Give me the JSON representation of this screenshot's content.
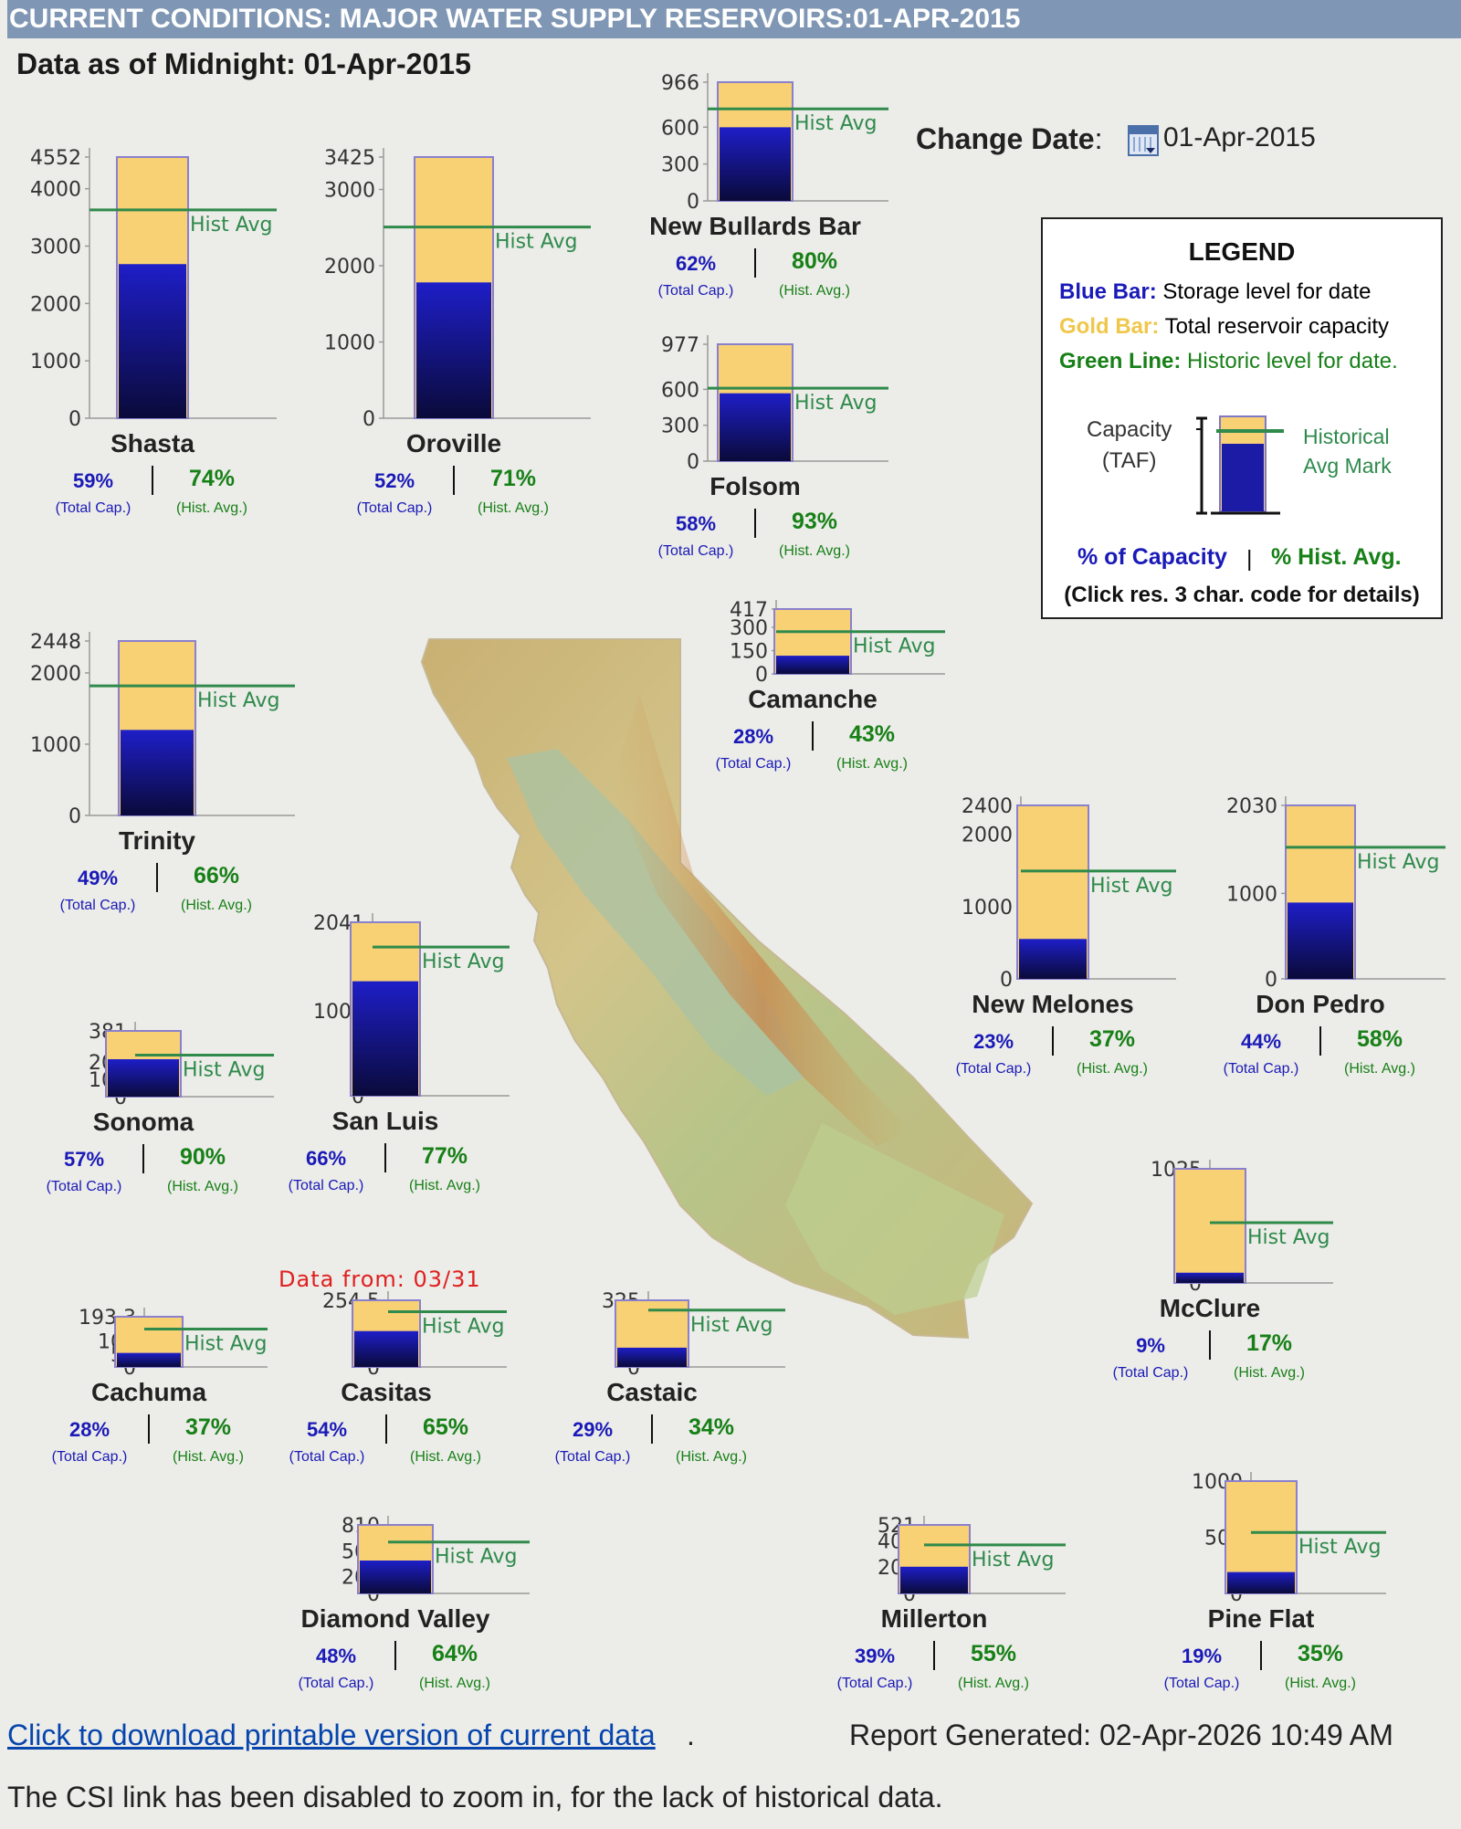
{
  "page": {
    "title": "CURRENT CONDITIONS: MAJOR WATER SUPPLY RESERVOIRS:01-APR-2015",
    "as_of": "Data as of Midnight: 01-Apr-2015",
    "change_date_label": "Change Date",
    "change_date_colon": ":",
    "change_date_value": "01-Apr-2015",
    "date_from_note": "Data from: 03/31",
    "download_link": "Click to download printable version of current data",
    "download_dot": ".",
    "report_generated": "Report Generated: 02-Apr-2026 10:49 AM",
    "csi_note": "The CSI link has been disabled to zoom in, for the lack of historical data."
  },
  "legend": {
    "title": "LEGEND",
    "blue_key": "Blue Bar:",
    "blue_text": " Storage level for date",
    "gold_key": "Gold Bar:",
    "gold_text": " Total reservoir capacity",
    "green_key": "Green Line:",
    "green_text": " Historic level for date.",
    "capacity_label_1": "Capacity",
    "capacity_label_2": "(TAF)",
    "hist_label_1": "Historical",
    "hist_label_2": "Avg Mark",
    "pct_capacity": "% of Capacity",
    "separator": "|",
    "pct_hist": "% Hist. Avg.",
    "click_note": "(Click res. 3 char. code for details)"
  },
  "labels": {
    "hist_avg": "Hist Avg",
    "total_cap": "(Total Cap.)",
    "hist_avg_small": "(Hist. Avg.)"
  },
  "colors": {
    "storage": "#1a1ab8",
    "capacity": "#f8d174",
    "hist_line": "#2f8a4c",
    "header": "#7f97b4"
  },
  "chart_data": [
    {
      "type": "bar",
      "name": "Shasta",
      "capacity": 4552,
      "storage": 2686,
      "hist_avg": 3630,
      "ticks": [
        0,
        1000,
        2000,
        3000,
        4000,
        4552
      ],
      "tick_labels": [
        "0",
        "1000",
        "2000",
        "3000",
        "4000",
        "4552"
      ],
      "pct_capacity": "59%",
      "pct_hist": "74%"
    },
    {
      "type": "bar",
      "name": "Oroville",
      "capacity": 3425,
      "storage": 1781,
      "hist_avg": 2508,
      "ticks": [
        0,
        1000,
        2000,
        3000,
        3425
      ],
      "tick_labels": [
        "0",
        "1000",
        "2000",
        "3000",
        "3425"
      ],
      "pct_capacity": "52%",
      "pct_hist": "71%"
    },
    {
      "type": "bar",
      "name": "New Bullards Bar",
      "capacity": 966,
      "storage": 599,
      "hist_avg": 749,
      "ticks": [
        0,
        300,
        600,
        966
      ],
      "tick_labels": [
        "0",
        "300",
        "600",
        "966"
      ],
      "pct_capacity": "62%",
      "pct_hist": "80%"
    },
    {
      "type": "bar",
      "name": "Folsom",
      "capacity": 977,
      "storage": 567,
      "hist_avg": 610,
      "ticks": [
        0,
        300,
        600,
        977
      ],
      "tick_labels": [
        "0",
        "300",
        "600",
        "977"
      ],
      "pct_capacity": "58%",
      "pct_hist": "93%"
    },
    {
      "type": "bar",
      "name": "Trinity",
      "capacity": 2448,
      "storage": 1200,
      "hist_avg": 1818,
      "ticks": [
        0,
        1000,
        2000,
        2448
      ],
      "tick_labels": [
        "0",
        "1000",
        "2000",
        "2448"
      ],
      "pct_capacity": "49%",
      "pct_hist": "66%"
    },
    {
      "type": "bar",
      "name": "Camanche",
      "capacity": 417,
      "storage": 117,
      "hist_avg": 272,
      "ticks": [
        0,
        150,
        300,
        417
      ],
      "tick_labels": [
        "0",
        "150",
        "300",
        "417"
      ],
      "pct_capacity": "28%",
      "pct_hist": "43%"
    },
    {
      "type": "bar",
      "name": "New Melones",
      "capacity": 2400,
      "storage": 552,
      "hist_avg": 1492,
      "ticks": [
        0,
        1000,
        2000,
        2400
      ],
      "tick_labels": [
        "0",
        "1000",
        "2000",
        "2400"
      ],
      "pct_capacity": "23%",
      "pct_hist": "37%"
    },
    {
      "type": "bar",
      "name": "Don Pedro",
      "capacity": 2030,
      "storage": 893,
      "hist_avg": 1540,
      "ticks": [
        0,
        1000,
        2030
      ],
      "tick_labels": [
        "0",
        "1000",
        "2030"
      ],
      "pct_capacity": "44%",
      "pct_hist": "58%"
    },
    {
      "type": "bar",
      "name": "San Luis",
      "capacity": 2041,
      "storage": 1347,
      "hist_avg": 1749,
      "ticks": [
        0,
        1000,
        2041
      ],
      "tick_labels": [
        "0",
        "1000",
        "2041"
      ],
      "pct_capacity": "66%",
      "pct_hist": "77%"
    },
    {
      "type": "bar",
      "name": "Sonoma",
      "capacity": 381,
      "storage": 217,
      "hist_avg": 241,
      "ticks": [
        0,
        100,
        200,
        381
      ],
      "tick_labels": [
        "0",
        "100",
        "200",
        "381"
      ],
      "pct_capacity": "57%",
      "pct_hist": "90%"
    },
    {
      "type": "bar",
      "name": "McClure",
      "capacity": 1025,
      "storage": 92,
      "hist_avg": 541,
      "ticks": [
        0,
        1025
      ],
      "tick_labels": [
        "0",
        "1025"
      ],
      "pct_capacity": "9%",
      "pct_hist": "17%"
    },
    {
      "type": "bar",
      "name": "Cachuma",
      "capacity": 193.3,
      "storage": 54,
      "hist_avg": 146,
      "ticks": [
        0,
        50,
        100,
        193.3
      ],
      "tick_labels": [
        "0",
        "50",
        "100",
        "193.3"
      ],
      "pct_capacity": "28%",
      "pct_hist": "37%"
    },
    {
      "type": "bar",
      "name": "Casitas",
      "capacity": 254.5,
      "storage": 137,
      "hist_avg": 211,
      "ticks": [
        0,
        254.5
      ],
      "tick_labels": [
        "0",
        "254.5"
      ],
      "pct_capacity": "54%",
      "pct_hist": "65%"
    },
    {
      "type": "bar",
      "name": "Castaic",
      "capacity": 325,
      "storage": 94,
      "hist_avg": 277,
      "ticks": [
        0,
        325
      ],
      "tick_labels": [
        "0",
        "325"
      ],
      "pct_capacity": "29%",
      "pct_hist": "34%"
    },
    {
      "type": "bar",
      "name": "Diamond Valley",
      "capacity": 810,
      "storage": 389,
      "hist_avg": 608,
      "ticks": [
        0,
        200,
        500,
        810
      ],
      "tick_labels": [
        "0",
        "200",
        "500",
        "810"
      ],
      "pct_capacity": "48%",
      "pct_hist": "64%"
    },
    {
      "type": "bar",
      "name": "Millerton",
      "capacity": 521,
      "storage": 203,
      "hist_avg": 369,
      "ticks": [
        0,
        200,
        400,
        521
      ],
      "tick_labels": [
        "0",
        "200",
        "400",
        "521"
      ],
      "pct_capacity": "39%",
      "pct_hist": "55%"
    },
    {
      "type": "bar",
      "name": "Pine Flat",
      "capacity": 1000,
      "storage": 190,
      "hist_avg": 543,
      "ticks": [
        0,
        500,
        1000
      ],
      "tick_labels": [
        "0",
        "500",
        "1000"
      ],
      "pct_capacity": "19%",
      "pct_hist": "35%"
    }
  ]
}
